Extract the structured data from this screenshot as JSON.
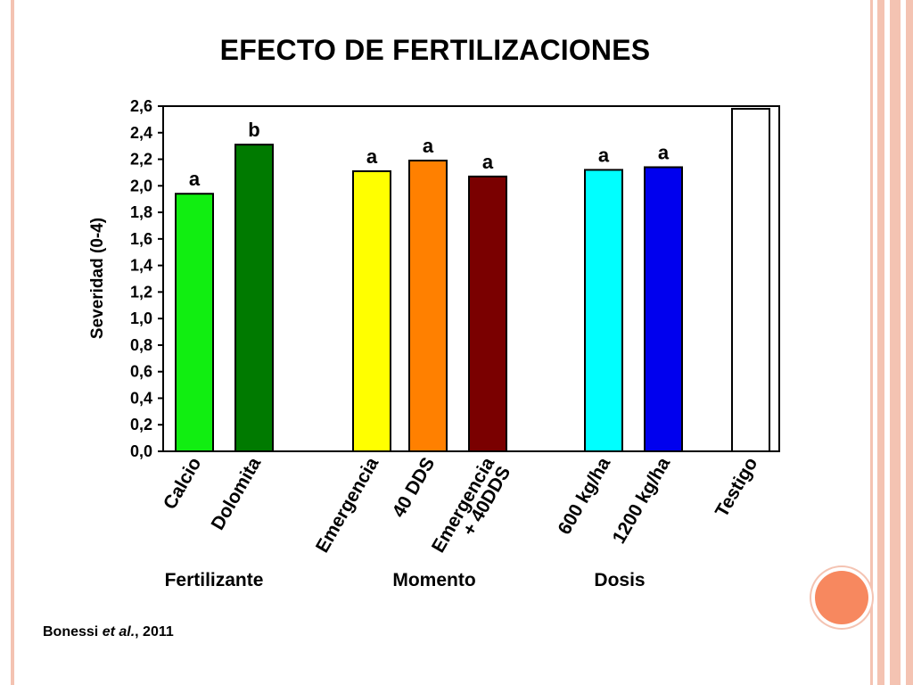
{
  "slide": {
    "title": "EFECTO DE FERTILIZACIONES",
    "citation_author": "Bonessi ",
    "citation_etal": "et al.",
    "citation_year": ", 2011"
  },
  "colors": {
    "frame": "#f4c3b2",
    "accent_dot": "#f7885f"
  },
  "chart_data": {
    "type": "bar",
    "title": "",
    "ylabel": "Severidad (0-4)",
    "xlabel": "",
    "ylim": [
      0,
      2.6
    ],
    "yticks": [
      "0,0",
      "0,2",
      "0,4",
      "0,6",
      "0,8",
      "1,0",
      "1,2",
      "1,4",
      "1,6",
      "1,8",
      "2,0",
      "2,2",
      "2,4",
      "2,6"
    ],
    "grid": false,
    "bars": [
      {
        "category": [
          "Calcio"
        ],
        "value": 1.94,
        "color": "#11ee11",
        "letter": "a",
        "group": 0
      },
      {
        "category": [
          "Dolomita"
        ],
        "value": 2.31,
        "color": "#007a00",
        "letter": "b",
        "group": 0
      },
      {
        "category": [
          "Emergencia"
        ],
        "value": 2.11,
        "color": "#ffff00",
        "letter": "a",
        "group": 1
      },
      {
        "category": [
          "40 DDS"
        ],
        "value": 2.19,
        "color": "#ff8000",
        "letter": "a",
        "group": 1
      },
      {
        "category": [
          "Emergencia",
          "+ 40DDS"
        ],
        "value": 2.07,
        "color": "#7a0000",
        "letter": "a",
        "group": 1
      },
      {
        "category": [
          "600 kg/ha"
        ],
        "value": 2.12,
        "color": "#00ffff",
        "letter": "a",
        "group": 2
      },
      {
        "category": [
          "1200 kg/ha"
        ],
        "value": 2.14,
        "color": "#0000ee",
        "letter": "a",
        "group": 2
      },
      {
        "category": [
          "Testigo"
        ],
        "value": 2.58,
        "color": "#ffffff",
        "letter": "",
        "group": 3
      }
    ],
    "groups": [
      "Fertilizante",
      "Momento",
      "Dosis"
    ]
  }
}
